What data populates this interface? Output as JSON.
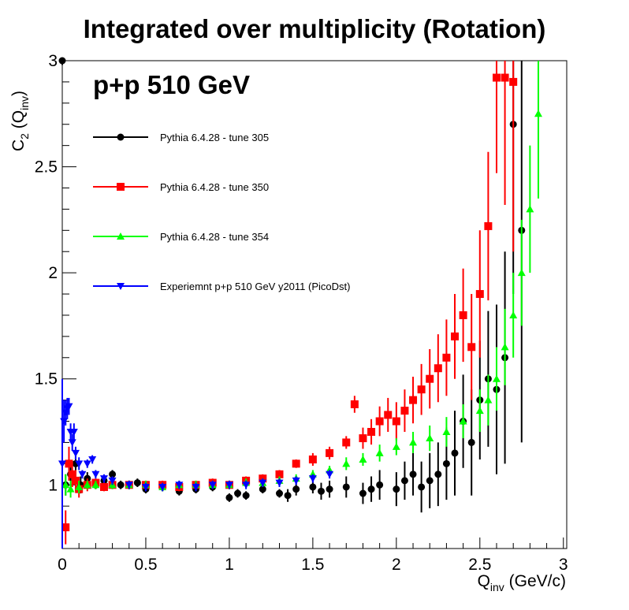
{
  "chart_data": {
    "type": "scatter",
    "title": "Integrated over multiplicity (Rotation)",
    "annotation": "p+p 510 GeV",
    "xlabel": {
      "main": "Q",
      "sub": "inv",
      "unit": " (GeV/c)"
    },
    "ylabel": {
      "main": "C",
      "sub": "2",
      "mid": " (Q",
      "sub2": "inv",
      "tail": ")"
    },
    "xlim": [
      0,
      3.02
    ],
    "ylim": [
      0.7,
      3.0
    ],
    "x_ticks": [
      0,
      0.5,
      1,
      1.5,
      2,
      2.5,
      3
    ],
    "x_tick_labels": [
      "0",
      "0.5",
      "1",
      "1.5",
      "2",
      "2.5",
      "3"
    ],
    "y_ticks": [
      1,
      1.5,
      2,
      2.5,
      3
    ],
    "y_tick_labels": [
      "1",
      "1.5",
      "2",
      "2.5",
      "3"
    ],
    "grid": false,
    "legend_position": "top-left",
    "series": [
      {
        "name": "Pythia 6.4.28 - tune 305",
        "color": "#000000",
        "marker": "circle",
        "x": [
          0.0,
          0.02,
          0.05,
          0.08,
          0.11,
          0.15,
          0.2,
          0.25,
          0.3,
          0.35,
          0.4,
          0.45,
          0.5,
          0.6,
          0.7,
          0.8,
          0.9,
          1.0,
          1.05,
          1.1,
          1.2,
          1.3,
          1.35,
          1.4,
          1.5,
          1.55,
          1.6,
          1.7,
          1.8,
          1.85,
          1.9,
          2.0,
          2.05,
          2.1,
          2.15,
          2.2,
          2.25,
          2.3,
          2.35,
          2.4,
          2.45,
          2.5,
          2.55,
          2.6,
          2.65,
          2.7,
          2.75
        ],
        "y": [
          3.0,
          1.0,
          1.05,
          1.1,
          1.0,
          1.03,
          1.0,
          1.02,
          1.05,
          1.0,
          1.0,
          1.01,
          0.98,
          0.99,
          0.97,
          0.98,
          0.99,
          0.94,
          0.96,
          0.95,
          0.98,
          0.96,
          0.95,
          0.98,
          0.99,
          0.97,
          0.98,
          0.99,
          0.96,
          0.98,
          1.0,
          0.98,
          1.02,
          1.05,
          0.99,
          1.02,
          1.05,
          1.1,
          1.15,
          1.3,
          1.2,
          1.4,
          1.5,
          1.45,
          1.6,
          2.7,
          2.2
        ],
        "err": [
          0.02,
          0.05,
          0.06,
          0.05,
          0.04,
          0.03,
          0.02,
          0.02,
          0.02,
          0.02,
          0.02,
          0.02,
          0.02,
          0.02,
          0.02,
          0.02,
          0.02,
          0.02,
          0.02,
          0.02,
          0.02,
          0.02,
          0.03,
          0.03,
          0.03,
          0.04,
          0.04,
          0.05,
          0.05,
          0.06,
          0.07,
          0.08,
          0.09,
          0.1,
          0.12,
          0.13,
          0.15,
          0.17,
          0.2,
          0.22,
          0.25,
          0.28,
          0.32,
          0.4,
          0.5,
          0.8,
          1.0
        ]
      },
      {
        "name": "Pythia 6.4.28 - tune 350",
        "color": "#ff0000",
        "marker": "square",
        "x": [
          0.02,
          0.04,
          0.06,
          0.08,
          0.1,
          0.15,
          0.2,
          0.25,
          0.3,
          0.4,
          0.5,
          0.6,
          0.7,
          0.8,
          0.9,
          1.0,
          1.1,
          1.2,
          1.3,
          1.4,
          1.5,
          1.6,
          1.7,
          1.75,
          1.8,
          1.85,
          1.9,
          1.95,
          2.0,
          2.05,
          2.1,
          2.15,
          2.2,
          2.25,
          2.3,
          2.35,
          2.4,
          2.45,
          2.5,
          2.55,
          2.6,
          2.65,
          2.7
        ],
        "y": [
          0.8,
          1.1,
          1.05,
          1.02,
          0.98,
          1.0,
          1.01,
          0.99,
          1.0,
          1.0,
          1.0,
          1.0,
          0.99,
          1.0,
          1.01,
          1.0,
          1.02,
          1.03,
          1.05,
          1.1,
          1.12,
          1.15,
          1.2,
          1.38,
          1.22,
          1.25,
          1.3,
          1.33,
          1.3,
          1.35,
          1.4,
          1.45,
          1.5,
          1.55,
          1.6,
          1.7,
          1.8,
          1.65,
          1.9,
          2.22,
          2.92,
          2.92,
          2.9
        ],
        "err": [
          0.08,
          0.08,
          0.06,
          0.05,
          0.04,
          0.03,
          0.02,
          0.02,
          0.02,
          0.02,
          0.02,
          0.02,
          0.02,
          0.02,
          0.02,
          0.02,
          0.02,
          0.02,
          0.02,
          0.02,
          0.03,
          0.03,
          0.03,
          0.04,
          0.05,
          0.06,
          0.07,
          0.08,
          0.09,
          0.1,
          0.11,
          0.12,
          0.14,
          0.16,
          0.18,
          0.2,
          0.22,
          0.25,
          0.3,
          0.35,
          0.45,
          0.6,
          0.8
        ]
      },
      {
        "name": "Pythia 6.4.28 - tune 354",
        "color": "#00ff00",
        "marker": "triangle-up",
        "x": [
          0.02,
          0.05,
          0.1,
          0.15,
          0.2,
          0.3,
          0.4,
          0.5,
          0.6,
          0.7,
          0.8,
          0.9,
          1.0,
          1.1,
          1.2,
          1.3,
          1.4,
          1.5,
          1.6,
          1.7,
          1.8,
          1.9,
          2.0,
          2.1,
          2.2,
          2.3,
          2.4,
          2.5,
          2.55,
          2.6,
          2.65,
          2.7,
          2.75,
          2.8,
          2.85
        ],
        "y": [
          1.0,
          0.98,
          0.99,
          1.0,
          1.0,
          1.0,
          1.0,
          1.0,
          0.99,
          1.0,
          1.0,
          1.0,
          1.0,
          1.01,
          1.01,
          1.02,
          1.03,
          1.05,
          1.07,
          1.1,
          1.12,
          1.15,
          1.18,
          1.2,
          1.22,
          1.25,
          1.3,
          1.35,
          1.4,
          1.5,
          1.65,
          1.8,
          2.0,
          2.3,
          2.75
        ],
        "err": [
          0.05,
          0.04,
          0.03,
          0.02,
          0.02,
          0.02,
          0.02,
          0.02,
          0.02,
          0.02,
          0.02,
          0.02,
          0.02,
          0.02,
          0.02,
          0.02,
          0.02,
          0.02,
          0.02,
          0.03,
          0.03,
          0.04,
          0.04,
          0.05,
          0.06,
          0.07,
          0.08,
          0.1,
          0.12,
          0.15,
          0.18,
          0.2,
          0.25,
          0.3,
          0.4
        ]
      },
      {
        "name": "Experiemnt p+p 510 GeV y2011 (PicoDst)",
        "color": "#0000ff",
        "marker": "triangle-down",
        "x": [
          0.0,
          0.01,
          0.02,
          0.03,
          0.04,
          0.05,
          0.06,
          0.07,
          0.08,
          0.1,
          0.12,
          0.15,
          0.18,
          0.2,
          0.25,
          0.3,
          0.4,
          0.5,
          0.6,
          0.7,
          0.8,
          0.9,
          1.0,
          1.1,
          1.2,
          1.3,
          1.4,
          1.5,
          1.6
        ],
        "y": [
          1.1,
          1.3,
          1.34,
          1.36,
          1.37,
          1.25,
          1.2,
          1.25,
          1.15,
          1.1,
          1.05,
          1.1,
          1.12,
          1.05,
          1.03,
          1.02,
          1.0,
          0.99,
          0.99,
          1.0,
          0.99,
          1.0,
          1.0,
          1.0,
          1.01,
          1.01,
          1.02,
          1.03,
          1.05
        ],
        "err": [
          0.4,
          0.1,
          0.06,
          0.05,
          0.04,
          0.04,
          0.04,
          0.04,
          0.03,
          0.03,
          0.02,
          0.02,
          0.02,
          0.02,
          0.02,
          0.02,
          0.02,
          0.02,
          0.02,
          0.02,
          0.02,
          0.02,
          0.02,
          0.02,
          0.02,
          0.02,
          0.02,
          0.02,
          0.02
        ]
      }
    ]
  }
}
